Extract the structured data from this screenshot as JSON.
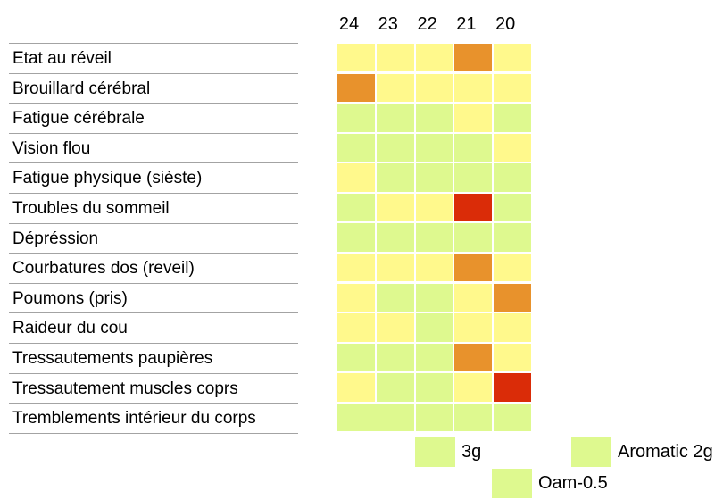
{
  "chart_data": {
    "type": "heatmap",
    "columns": [
      "24",
      "23",
      "22",
      "21",
      "20"
    ],
    "rows": [
      {
        "label": "Etat au réveil",
        "cells": [
          "yellow",
          "yellow",
          "yellow",
          "orange",
          "yellow"
        ]
      },
      {
        "label": "Brouillard cérébral",
        "cells": [
          "orange",
          "yellow",
          "yellow",
          "yellow",
          "yellow"
        ]
      },
      {
        "label": "Fatigue cérébrale",
        "cells": [
          "green",
          "green",
          "green",
          "yellow",
          "green"
        ]
      },
      {
        "label": "Vision flou",
        "cells": [
          "green",
          "green",
          "green",
          "green",
          "yellow"
        ]
      },
      {
        "label": "Fatigue physique (sièste)",
        "cells": [
          "yellow",
          "green",
          "green",
          "green",
          "green"
        ]
      },
      {
        "label": "Troubles du sommeil",
        "cells": [
          "green",
          "yellow",
          "yellow",
          "red",
          "green"
        ]
      },
      {
        "label": "Dépréssion",
        "cells": [
          "green",
          "green",
          "green",
          "green",
          "green"
        ]
      },
      {
        "label": "Courbatures dos (reveil)",
        "cells": [
          "yellow",
          "yellow",
          "yellow",
          "orange",
          "yellow"
        ]
      },
      {
        "label": "Poumons (pris)",
        "cells": [
          "yellow",
          "green",
          "green",
          "yellow",
          "orange"
        ]
      },
      {
        "label": "Raideur du cou",
        "cells": [
          "yellow",
          "yellow",
          "green",
          "yellow",
          "yellow"
        ]
      },
      {
        "label": "Tressautements paupières",
        "cells": [
          "green",
          "green",
          "green",
          "orange",
          "yellow"
        ]
      },
      {
        "label": "Tressautement muscles coprs",
        "cells": [
          "yellow",
          "green",
          "green",
          "yellow",
          "red"
        ]
      },
      {
        "label": "Tremblements intérieur du corps",
        "cells": [
          "green",
          "green",
          "green",
          "green",
          "green"
        ],
        "merge_first_two": true
      }
    ],
    "palette": {
      "yellow": "#FFF98C",
      "green": "#DEF98F",
      "orange": "#E8922C",
      "red": "#DA2C08"
    },
    "severity_scale": {
      "green": 1,
      "yellow": 2,
      "orange": 3,
      "red": 4
    }
  },
  "legend": {
    "items": [
      {
        "label": "3g",
        "color": "#DEF98F"
      },
      {
        "label": "Oam-0.5",
        "color": "#DEF98F"
      },
      {
        "label": "Aromatic 2g",
        "color": "#DEF98F"
      }
    ]
  }
}
